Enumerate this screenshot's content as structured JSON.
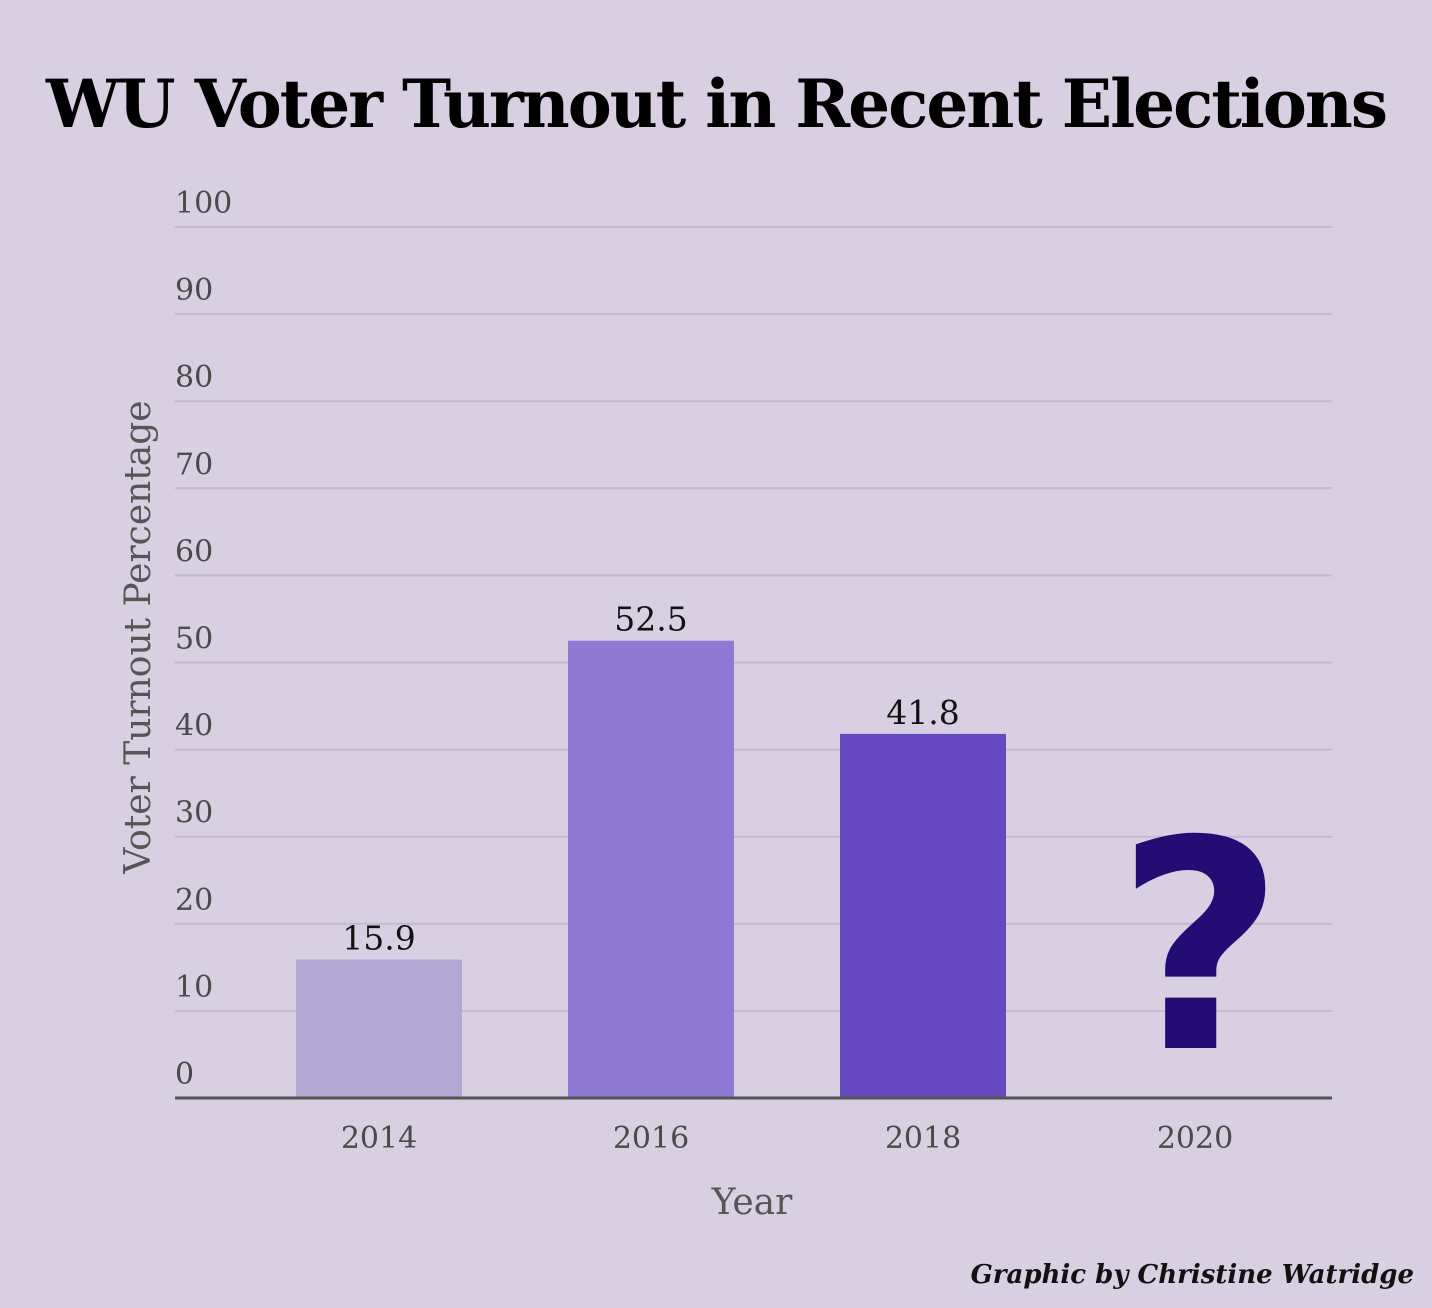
{
  "credit": "Graphic by Christine Watridge",
  "chart_data": {
    "type": "bar",
    "title": "WU Voter Turnout in Recent Elections",
    "xlabel": "Year",
    "ylabel": "Voter Turnout Percentage",
    "categories": [
      "2014",
      "2016",
      "2018",
      "2020"
    ],
    "values": [
      15.9,
      52.5,
      41.8,
      null
    ],
    "data_labels": [
      "15.9",
      "52.5",
      "41.8",
      "?"
    ],
    "bar_colors": [
      "#b3a8d4",
      "#8f79d5",
      "#6547c0",
      "#230d74"
    ],
    "ylim": [
      0,
      100
    ],
    "yticks": [
      0,
      10,
      20,
      30,
      40,
      50,
      60,
      70,
      80,
      90,
      100
    ],
    "grid": true,
    "legend": "none"
  }
}
